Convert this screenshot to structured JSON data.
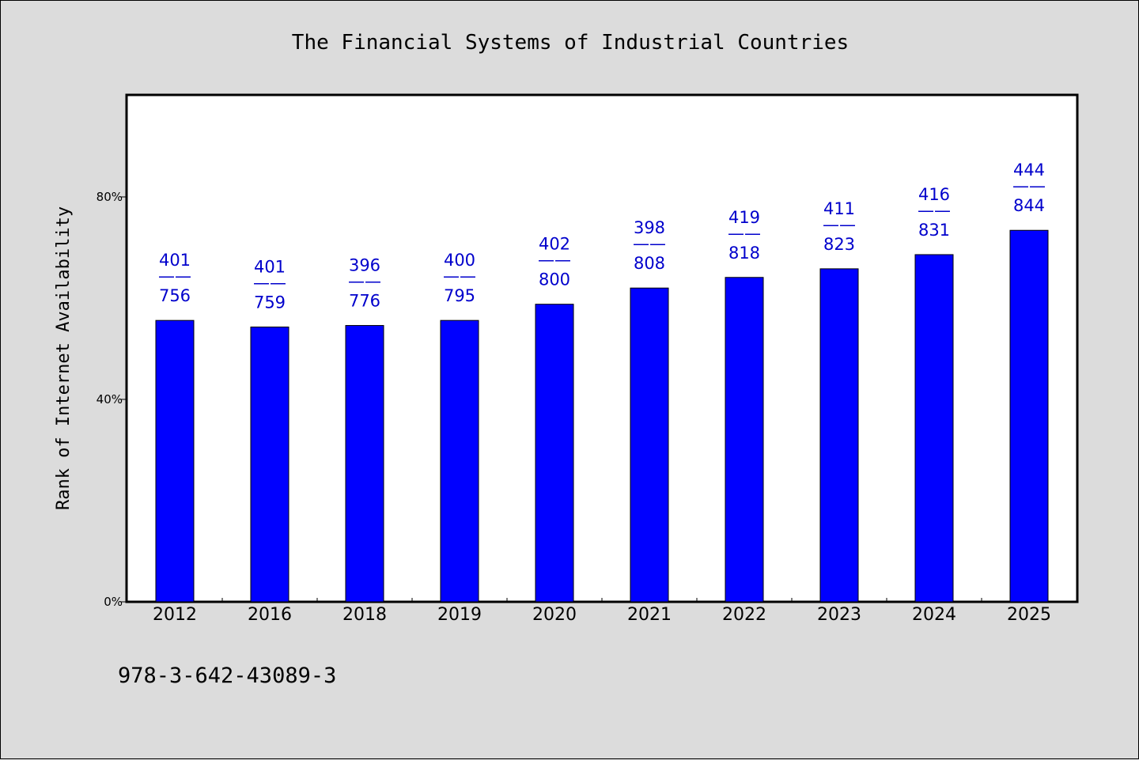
{
  "chart_data": {
    "type": "bar",
    "title": "The Financial Systems of Industrial Countries",
    "xlabel": "",
    "ylabel": "Rank of Internet Availability",
    "categories": [
      "2012",
      "2016",
      "2018",
      "2019",
      "2020",
      "2021",
      "2022",
      "2023",
      "2024",
      "2025"
    ],
    "values": [
      55.6,
      54.3,
      54.6,
      55.6,
      58.8,
      62.0,
      64.1,
      65.8,
      68.6,
      73.4
    ],
    "data_labels": [
      {
        "top": "401",
        "sep": "——",
        "bottom": "756"
      },
      {
        "top": "401",
        "sep": "——",
        "bottom": "759"
      },
      {
        "top": "396",
        "sep": "——",
        "bottom": "776"
      },
      {
        "top": "400",
        "sep": "——",
        "bottom": "795"
      },
      {
        "top": "402",
        "sep": "——",
        "bottom": "800"
      },
      {
        "top": "398",
        "sep": "——",
        "bottom": "808"
      },
      {
        "top": "419",
        "sep": "——",
        "bottom": "818"
      },
      {
        "top": "411",
        "sep": "——",
        "bottom": "823"
      },
      {
        "top": "416",
        "sep": "——",
        "bottom": "831"
      },
      {
        "top": "444",
        "sep": "——",
        "bottom": "844"
      }
    ],
    "yticks": [
      0,
      40,
      80
    ],
    "ytick_labels": [
      "0%",
      "40%",
      "80%"
    ],
    "ylim": [
      0,
      100
    ],
    "grid": false,
    "bar_color": "#0000ff",
    "label_color": "#0000cc",
    "plot_background": "#ffffff",
    "page_background": "#dcdcdc"
  },
  "footer": {
    "isbn": "978-3-642-43089-3"
  }
}
